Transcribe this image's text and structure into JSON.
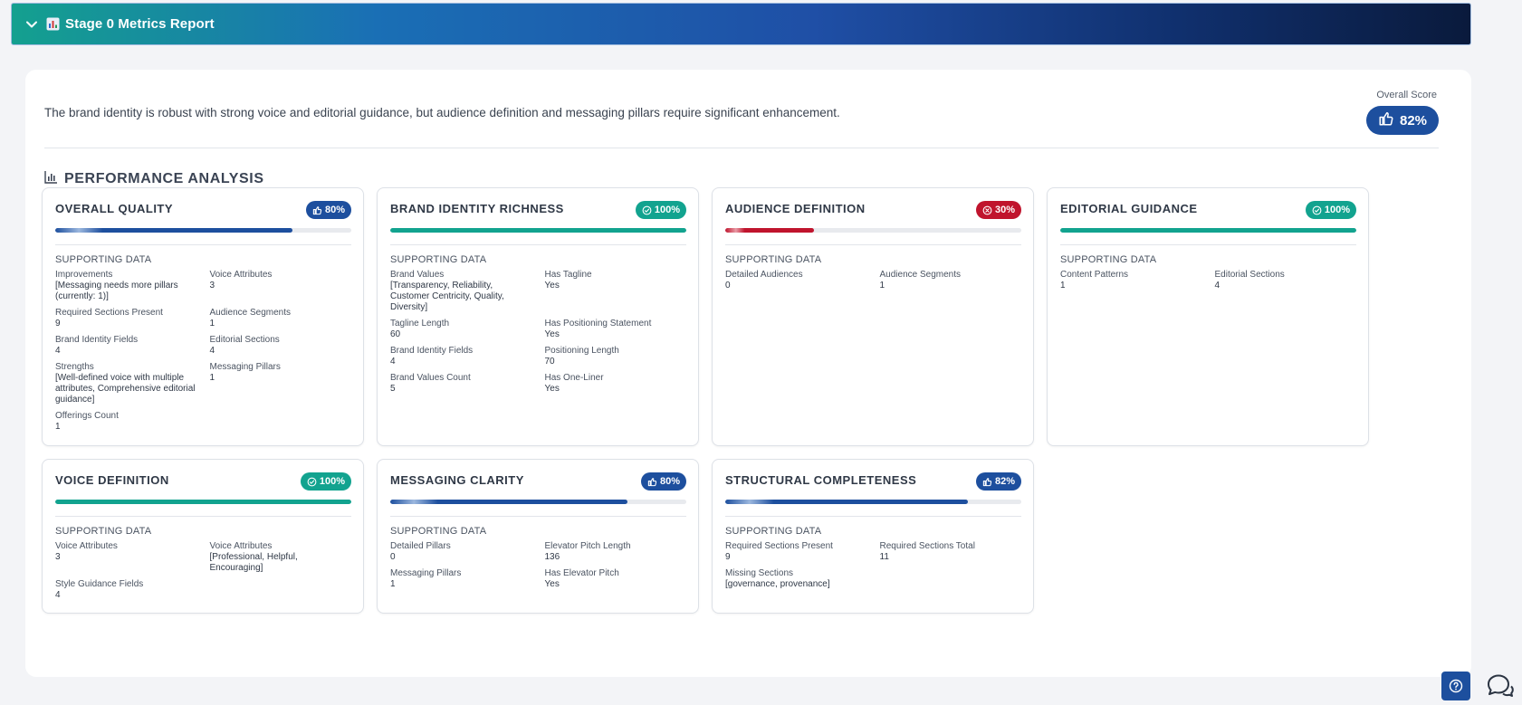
{
  "header": {
    "title": "Stage 0 Metrics Report"
  },
  "summary": "The brand identity is robust with strong voice and editorial guidance, but audience definition and messaging pillars require significant enhancement.",
  "overall": {
    "label": "Overall Score",
    "value": "82%"
  },
  "section_title": "PERFORMANCE ANALYSIS",
  "supporting_label": "SUPPORTING DATA",
  "colors": {
    "blue": "#1d4f9e",
    "green": "#12a38f",
    "red": "#c0142d"
  },
  "cards": [
    {
      "title": "OVERALL QUALITY",
      "score": "80%",
      "progress": 0.8,
      "status": "blue",
      "icon": "thumbs-up-icon",
      "items": [
        {
          "k": "Improvements",
          "v": "[Messaging needs more pillars (currently: 1)]"
        },
        {
          "k": "Voice Attributes",
          "v": "3"
        },
        {
          "k": "Required Sections Present",
          "v": "9"
        },
        {
          "k": "Audience Segments",
          "v": "1"
        },
        {
          "k": "Brand Identity Fields",
          "v": "4"
        },
        {
          "k": "Editorial Sections",
          "v": "4"
        },
        {
          "k": "Strengths",
          "v": "[Well-defined voice with multiple attributes, Comprehensive editorial guidance]"
        },
        {
          "k": "Messaging Pillars",
          "v": "1"
        },
        {
          "k": "Offerings Count",
          "v": "1"
        }
      ]
    },
    {
      "title": "BRAND IDENTITY RICHNESS",
      "score": "100%",
      "progress": 1.0,
      "status": "green",
      "icon": "check-circle-icon",
      "items": [
        {
          "k": "Brand Values",
          "v": "[Transparency, Reliability, Customer Centricity, Quality, Diversity]"
        },
        {
          "k": "Has Tagline",
          "v": "Yes"
        },
        {
          "k": "Tagline Length",
          "v": "60"
        },
        {
          "k": "Has Positioning Statement",
          "v": "Yes"
        },
        {
          "k": "Brand Identity Fields",
          "v": "4"
        },
        {
          "k": "Positioning Length",
          "v": "70"
        },
        {
          "k": "Brand Values Count",
          "v": "5"
        },
        {
          "k": "Has One-Liner",
          "v": "Yes"
        }
      ]
    },
    {
      "title": "AUDIENCE DEFINITION",
      "score": "30%",
      "progress": 0.3,
      "status": "red",
      "icon": "x-circle-icon",
      "items": [
        {
          "k": "Detailed Audiences",
          "v": "0"
        },
        {
          "k": "Audience Segments",
          "v": "1"
        }
      ]
    },
    {
      "title": "EDITORIAL GUIDANCE",
      "score": "100%",
      "progress": 1.0,
      "status": "green",
      "icon": "check-circle-icon",
      "items": [
        {
          "k": "Content Patterns",
          "v": "1"
        },
        {
          "k": "Editorial Sections",
          "v": "4"
        }
      ]
    },
    {
      "title": "VOICE DEFINITION",
      "score": "100%",
      "progress": 1.0,
      "status": "green",
      "icon": "check-circle-icon",
      "items": [
        {
          "k": "Voice Attributes",
          "v": "3"
        },
        {
          "k": "Voice Attributes",
          "v": "[Professional, Helpful, Encouraging]"
        },
        {
          "k": "Style Guidance Fields",
          "v": "4"
        }
      ]
    },
    {
      "title": "MESSAGING CLARITY",
      "score": "80%",
      "progress": 0.8,
      "status": "blue",
      "icon": "thumbs-up-icon",
      "items": [
        {
          "k": "Detailed Pillars",
          "v": "0"
        },
        {
          "k": "Elevator Pitch Length",
          "v": "136"
        },
        {
          "k": "Messaging Pillars",
          "v": "1"
        },
        {
          "k": "Has Elevator Pitch",
          "v": "Yes"
        }
      ]
    },
    {
      "title": "STRUCTURAL COMPLETENESS",
      "score": "82%",
      "progress": 0.82,
      "status": "blue",
      "icon": "thumbs-up-icon",
      "items": [
        {
          "k": "Required Sections Present",
          "v": "9"
        },
        {
          "k": "Required Sections Total",
          "v": "11"
        },
        {
          "k": "Missing Sections",
          "v": "[governance, provenance]"
        }
      ]
    }
  ]
}
